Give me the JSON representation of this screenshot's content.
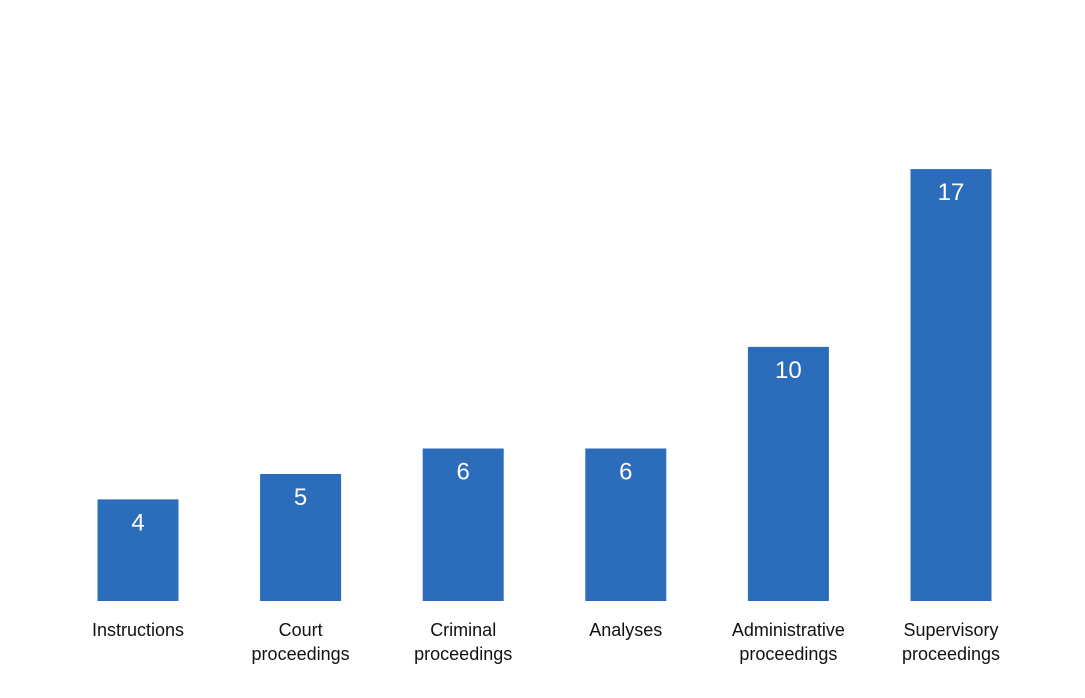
{
  "chart_data": {
    "type": "bar",
    "categories": [
      "Instructions",
      "Court proceedings",
      "Criminal proceedings",
      "Analyses",
      "Administrative proceedings",
      "Supervisory proceedings"
    ],
    "category_lines": [
      [
        "Instructions"
      ],
      [
        "Court",
        "proceedings"
      ],
      [
        "Criminal",
        "proceedings"
      ],
      [
        "Analyses"
      ],
      [
        "Administrative",
        "proceedings"
      ],
      [
        "Supervisory",
        "proceedings"
      ]
    ],
    "values": [
      4,
      5,
      6,
      6,
      10,
      17
    ],
    "data_labels": [
      "4",
      "5",
      "6",
      "6",
      "10",
      "17"
    ],
    "ylim": [
      0,
      17.75
    ],
    "title": "",
    "xlabel": "",
    "ylabel": "",
    "grid": false,
    "legend": "none",
    "colors": {
      "bar": "#2b6cbb",
      "data_label": "#ffffff",
      "category_label": "#111111"
    }
  }
}
